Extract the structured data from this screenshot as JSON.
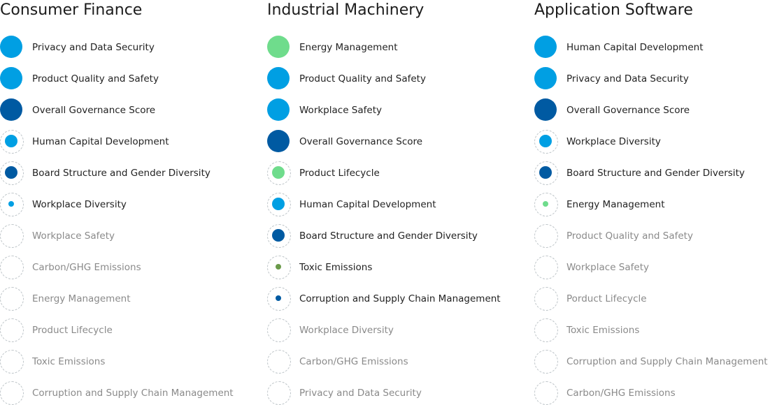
{
  "colors": {
    "light_blue": "#009fe3",
    "dark_blue": "#005aa2",
    "green": "#6fdc8c",
    "olive": "#6a9a4a",
    "active_text": "#222222",
    "inactive_text": "#8a8a8a",
    "ring_border": "#bcc3c7"
  },
  "columns": [
    {
      "title": "Consumer Finance",
      "topics": [
        {
          "label": "Privacy and Data Security",
          "color": "light_blue",
          "level": 1.0
        },
        {
          "label": "Product Quality and Safety",
          "color": "light_blue",
          "level": 1.0
        },
        {
          "label": "Overall Governance Score",
          "color": "dark_blue",
          "level": 1.0
        },
        {
          "label": "Human Capital Development",
          "color": "light_blue",
          "level": 0.55
        },
        {
          "label": "Board Structure and Gender Diversity",
          "color": "dark_blue",
          "level": 0.55
        },
        {
          "label": "Workplace Diversity",
          "color": "light_blue",
          "level": 0.25
        },
        {
          "label": "Workplace Safety",
          "color": "light_blue",
          "level": 0
        },
        {
          "label": "Carbon/GHG Emissions",
          "color": "light_blue",
          "level": 0
        },
        {
          "label": "Energy Management",
          "color": "light_blue",
          "level": 0
        },
        {
          "label": "Product Lifecycle",
          "color": "light_blue",
          "level": 0
        },
        {
          "label": "Toxic Emissions",
          "color": "light_blue",
          "level": 0
        },
        {
          "label": "Corruption and Supply Chain Management",
          "color": "light_blue",
          "level": 0
        }
      ]
    },
    {
      "title": "Industrial Machinery",
      "topics": [
        {
          "label": "Energy Management",
          "color": "green",
          "level": 1.0
        },
        {
          "label": "Product Quality and Safety",
          "color": "light_blue",
          "level": 1.0
        },
        {
          "label": "Workplace Safety",
          "color": "light_blue",
          "level": 1.0
        },
        {
          "label": "Overall Governance Score",
          "color": "dark_blue",
          "level": 1.0
        },
        {
          "label": "Product Lifecycle",
          "color": "green",
          "level": 0.55
        },
        {
          "label": "Human Capital Development",
          "color": "light_blue",
          "level": 0.55
        },
        {
          "label": "Board Structure and Gender Diversity",
          "color": "dark_blue",
          "level": 0.55
        },
        {
          "label": "Toxic Emissions",
          "color": "olive",
          "level": 0.25
        },
        {
          "label": "Corruption and Supply Chain Management",
          "color": "dark_blue",
          "level": 0.25
        },
        {
          "label": "Workplace Diversity",
          "color": "light_blue",
          "level": 0
        },
        {
          "label": "Carbon/GHG Emissions",
          "color": "light_blue",
          "level": 0
        },
        {
          "label": "Privacy and Data Security",
          "color": "light_blue",
          "level": 0
        }
      ]
    },
    {
      "title": "Application Software",
      "topics": [
        {
          "label": "Human Capital Development",
          "color": "light_blue",
          "level": 1.0
        },
        {
          "label": "Privacy and Data Security",
          "color": "light_blue",
          "level": 1.0
        },
        {
          "label": "Overall Governance Score",
          "color": "dark_blue",
          "level": 1.0
        },
        {
          "label": "Workplace Diversity",
          "color": "light_blue",
          "level": 0.55
        },
        {
          "label": "Board Structure and Gender Diversity",
          "color": "dark_blue",
          "level": 0.55
        },
        {
          "label": "Energy Management",
          "color": "green",
          "level": 0.25
        },
        {
          "label": "Product Quality and Safety",
          "color": "light_blue",
          "level": 0
        },
        {
          "label": "Workplace Safety",
          "color": "light_blue",
          "level": 0
        },
        {
          "label": "Porduct Lifecycle",
          "color": "light_blue",
          "level": 0
        },
        {
          "label": "Toxic Emissions",
          "color": "light_blue",
          "level": 0
        },
        {
          "label": "Corruption and Supply Chain Management",
          "color": "light_blue",
          "level": 0
        },
        {
          "label": "Carbon/GHG Emissions",
          "color": "light_blue",
          "level": 0
        }
      ]
    }
  ]
}
